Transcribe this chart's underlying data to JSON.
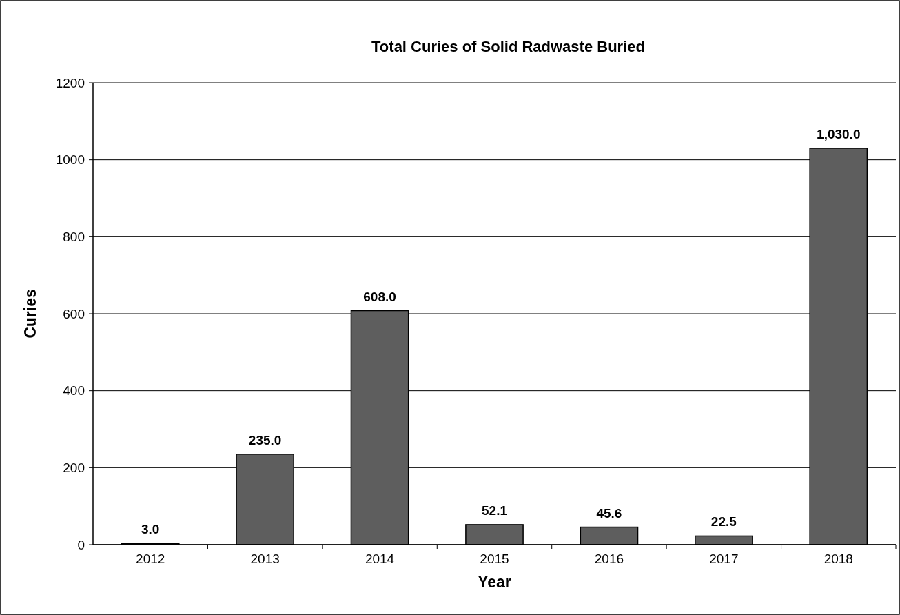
{
  "chart_data": {
    "type": "bar",
    "title": "Total Curies of Solid Radwaste Buried",
    "xlabel": "Year",
    "ylabel": "Curies",
    "categories": [
      "2012",
      "2013",
      "2014",
      "2015",
      "2016",
      "2017",
      "2018"
    ],
    "values": [
      3.0,
      235.0,
      608.0,
      52.1,
      45.6,
      22.5,
      1030.0
    ],
    "value_labels": [
      "3.0",
      "235.0",
      "608.0",
      "52.1",
      "45.6",
      "22.5",
      "1,030.0"
    ],
    "color": "#5e5e5e",
    "ylim": [
      0,
      1200
    ],
    "yticks": [
      0,
      200,
      400,
      600,
      800,
      1000,
      1200
    ],
    "grid": "y"
  }
}
